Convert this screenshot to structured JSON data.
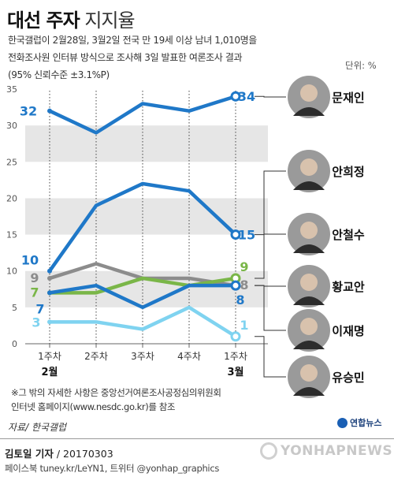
{
  "header": {
    "title_bold": "대선 주자",
    "title_light": "지지율",
    "desc_lines": [
      "한국갤럽이 2월28일, 3월2일 전국 만 19세 이상 남녀 1,010명을",
      "전화조사원 인터뷰 방식으로 조사해 3일 발표한 여론조사 결과",
      "(95% 신뢰수준 ±3.1%P)"
    ],
    "unit": "단위: %"
  },
  "chart_data": {
    "type": "line",
    "categories": [
      "1주차",
      "2주차",
      "3주차",
      "4주차",
      "1주차"
    ],
    "month_labels": [
      {
        "index": 0,
        "text": "2월"
      },
      {
        "index": 4,
        "text": "3월"
      }
    ],
    "ylim": [
      0,
      35
    ],
    "yticks": [
      0,
      5,
      10,
      15,
      20,
      25,
      30,
      35
    ],
    "grid_bands": true,
    "series": [
      {
        "name": "문재인",
        "values": [
          32,
          29,
          33,
          32,
          34
        ],
        "color": "#1f78c8",
        "start_label": "32",
        "end_label": "34"
      },
      {
        "name": "안희정",
        "values": [
          10,
          19,
          22,
          21,
          15
        ],
        "color": "#1f78c8",
        "start_label": "10",
        "end_label": "15"
      },
      {
        "name": "안철수",
        "values": [
          7,
          7,
          9,
          8,
          9
        ],
        "color": "#7ab648",
        "start_label": "7",
        "end_label": "9"
      },
      {
        "name": "황교안",
        "values": [
          9,
          11,
          9,
          9,
          8
        ],
        "color": "#8c8c8c",
        "start_label": "9",
        "end_label": "8"
      },
      {
        "name": "이재명",
        "values": [
          7,
          8,
          5,
          8,
          8
        ],
        "color": "#1f78c8",
        "start_label": "7",
        "end_label": "8"
      },
      {
        "name": "유승민",
        "values": [
          3,
          3,
          2,
          5,
          1
        ],
        "color": "#7fd3f0",
        "start_label": "3",
        "end_label": "1"
      }
    ]
  },
  "footnote_lines": [
    "※그 밖의 자세한 사항은 중앙선거여론조사공정심의위원회",
    "인터넷 홈페이지(www.nesdc.go.kr)를 참조"
  ],
  "source": "자료/ 한국갤럽",
  "logo_text": "연합뉴스",
  "reporter": {
    "name": "김토일 기자",
    "date": " / 20170303"
  },
  "social": "페이스북 tuney.kr/LeYN1, 트위터 @yonhap_graphics",
  "watermark": "YONHAPNEWS"
}
